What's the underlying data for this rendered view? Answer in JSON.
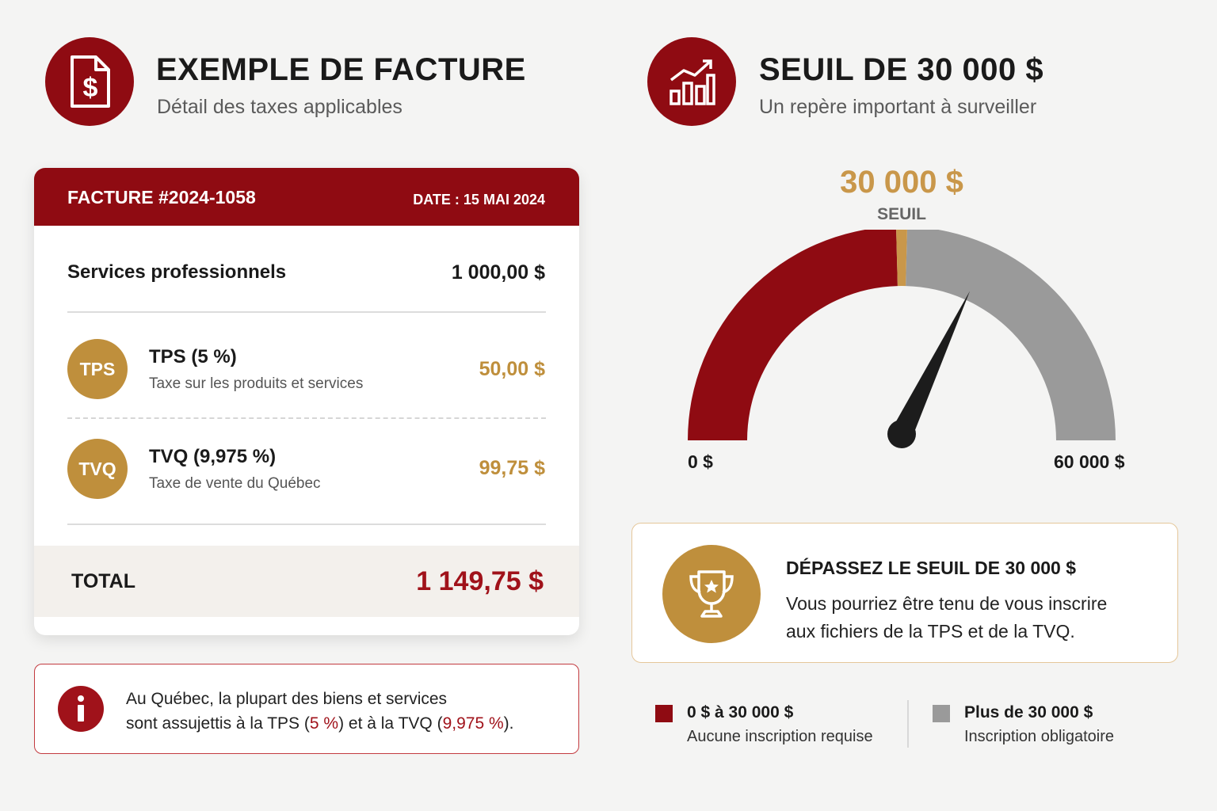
{
  "invoice_section": {
    "title": "EXEMPLE DE FACTURE",
    "subtitle": "Détail des taxes applicables",
    "icon": "invoice-dollar-icon"
  },
  "threshold_section": {
    "title": "SEUIL DE 30 000 $",
    "subtitle": "Un repère important à surveiller",
    "icon": "growth-chart-icon"
  },
  "invoice": {
    "number": "FACTURE #2024-1058",
    "date": "DATE : 15 MAI 2024",
    "service_label": "Services professionnels",
    "service_amount": "1 000,00 $",
    "taxes": [
      {
        "badge": "TPS",
        "title": "TPS (5 %)",
        "desc": "Taxe sur les produits et services",
        "amount": "50,00 $"
      },
      {
        "badge": "TVQ",
        "title": "TVQ (9,975 %)",
        "desc": "Taxe de vente du Québec",
        "amount": "99,75 $"
      }
    ],
    "total_label": "TOTAL",
    "total_amount": "1 149,75 $"
  },
  "info_note": {
    "icon": "info-icon",
    "line1": "Au Québec, la plupart des biens et services",
    "line2_a": "sont assujettis à la TPS (",
    "line2_b": "5 %",
    "line2_c": ") et à la TVQ (",
    "line2_d": "9,975 %",
    "line2_e": ")."
  },
  "gauge": {
    "threshold_value": "30 000 $",
    "threshold_label": "SEUIL",
    "min_label": "0 $",
    "max_label": "60 000 $",
    "min": 0,
    "max": 60000,
    "threshold": 30000,
    "needle_value": 38500,
    "colors": {
      "below": "#8f0b12",
      "above": "#9a9a9a",
      "marker": "#c9974a",
      "needle": "#1c1c1c"
    }
  },
  "callout": {
    "icon": "trophy-icon",
    "title": "DÉPASSEZ LE SEUIL DE 30 000 $",
    "line1": "Vous pourriez être tenu de vous inscrire",
    "line2": "aux fichiers de la TPS et de la TVQ."
  },
  "legend": [
    {
      "title": "0 $ à 30 000 $",
      "desc": "Aucune inscription requise",
      "color": "#8f0b12"
    },
    {
      "title": "Plus de 30 000 $",
      "desc": "Inscription obligatoire",
      "color": "#9a9a9a"
    }
  ]
}
